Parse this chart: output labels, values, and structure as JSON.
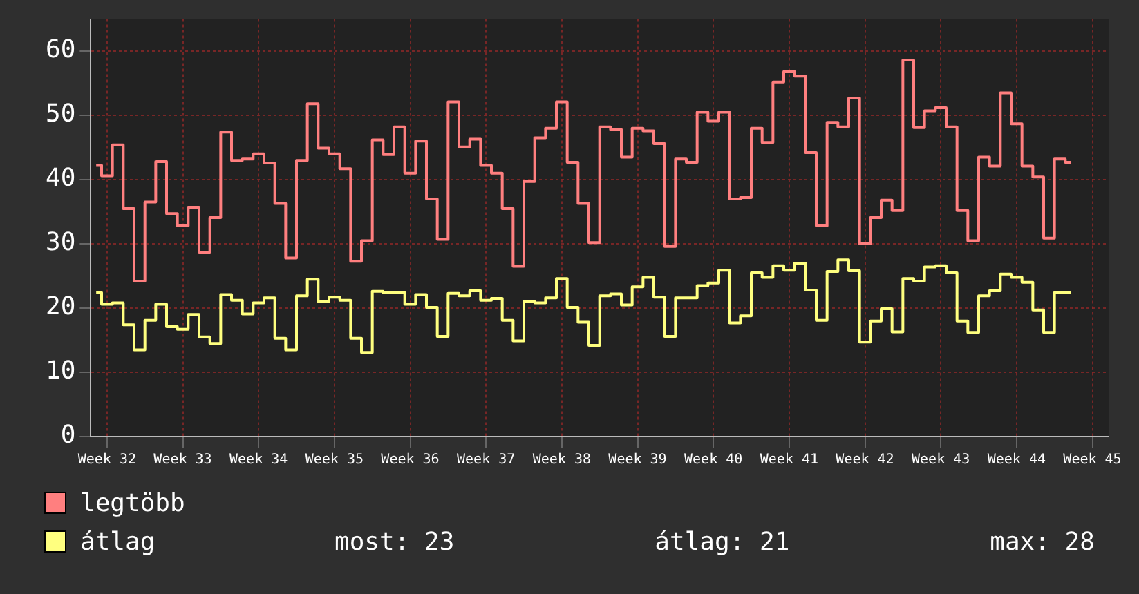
{
  "chart_data": {
    "type": "step",
    "categories": [
      null,
      "Week 32",
      null,
      null,
      null,
      null,
      null,
      null,
      "Week 33",
      null,
      null,
      null,
      null,
      null,
      null,
      "Week 34",
      null,
      null,
      null,
      null,
      null,
      null,
      "Week 35",
      null,
      null,
      null,
      null,
      null,
      null,
      "Week 36",
      null,
      null,
      null,
      null,
      null,
      null,
      "Week 37",
      null,
      null,
      null,
      null,
      null,
      null,
      "Week 38",
      null,
      null,
      null,
      null,
      null,
      null,
      "Week 39",
      null,
      null,
      null,
      null,
      null,
      null,
      "Week 40",
      null,
      null,
      null,
      null,
      null,
      null,
      "Week 41",
      null,
      null,
      null,
      null,
      null,
      null,
      "Week 42",
      null,
      null,
      null,
      null,
      null,
      null,
      "Week 43",
      null,
      null,
      null,
      null,
      null,
      null,
      "Week 44",
      null,
      null,
      null,
      null,
      null,
      null,
      "Week 45",
      null
    ],
    "series": [
      {
        "name": "legtöbb",
        "color": "#ff7f7f",
        "values": [
          42.2,
          40.6,
          45.4,
          35.5,
          24.2,
          36.5,
          42.8,
          34.7,
          32.8,
          35.7,
          28.6,
          34.1,
          47.4,
          43.0,
          43.2,
          44.0,
          42.6,
          36.3,
          27.8,
          43.0,
          51.8,
          44.9,
          44.0,
          41.7,
          27.3,
          30.5,
          46.2,
          43.9,
          48.2,
          41.0,
          46.0,
          37.0,
          30.7,
          52.1,
          45.1,
          46.3,
          42.2,
          41.0,
          35.5,
          26.5,
          39.7,
          46.5,
          48.0,
          52.1,
          42.7,
          36.3,
          30.2,
          48.2,
          47.8,
          43.5,
          48.0,
          47.6,
          45.6,
          29.6,
          43.2,
          42.7,
          50.5,
          49.1,
          50.5,
          37.0,
          37.2,
          48.0,
          45.8,
          55.2,
          56.8,
          56.1,
          44.2,
          32.8,
          48.9,
          48.2,
          52.7,
          30.0,
          34.1,
          36.8,
          35.2,
          58.6,
          48.1,
          50.7,
          51.2,
          48.2,
          35.2,
          30.5,
          43.5,
          42.1,
          53.5,
          48.7,
          42.1,
          40.4,
          30.9,
          43.2,
          42.7,
          null,
          null,
          null
        ]
      },
      {
        "name": "átlag",
        "color": "#ffff7f",
        "values": [
          22.4,
          20.6,
          20.8,
          17.4,
          13.5,
          18.1,
          20.6,
          17.1,
          16.7,
          19.0,
          15.5,
          14.5,
          22.1,
          21.2,
          19.1,
          20.8,
          21.6,
          15.3,
          13.5,
          21.9,
          24.5,
          21.0,
          21.7,
          21.2,
          15.3,
          13.1,
          22.6,
          22.4,
          22.4,
          20.6,
          22.1,
          20.1,
          15.6,
          22.3,
          21.9,
          22.7,
          21.2,
          21.5,
          18.1,
          14.9,
          21.0,
          20.8,
          21.6,
          24.6,
          20.1,
          17.8,
          14.2,
          21.9,
          22.2,
          20.5,
          23.3,
          24.8,
          21.7,
          15.6,
          21.6,
          21.6,
          23.5,
          23.9,
          25.9,
          17.7,
          18.8,
          25.5,
          24.8,
          26.6,
          25.9,
          27.0,
          22.8,
          18.1,
          25.7,
          27.5,
          25.8,
          14.7,
          18.0,
          19.9,
          16.3,
          24.6,
          24.2,
          26.4,
          26.6,
          25.5,
          18.0,
          16.2,
          21.9,
          22.7,
          25.3,
          24.8,
          24.0,
          19.7,
          16.2,
          22.4,
          22.4,
          null,
          null,
          null
        ]
      }
    ],
    "ylim": [
      0,
      65
    ],
    "yticks": [
      0,
      10,
      20,
      30,
      40,
      50,
      60
    ],
    "grid": true,
    "legend": "bottom",
    "annotations": [
      "most: 23",
      "átlag: 21",
      "max: 28"
    ]
  }
}
